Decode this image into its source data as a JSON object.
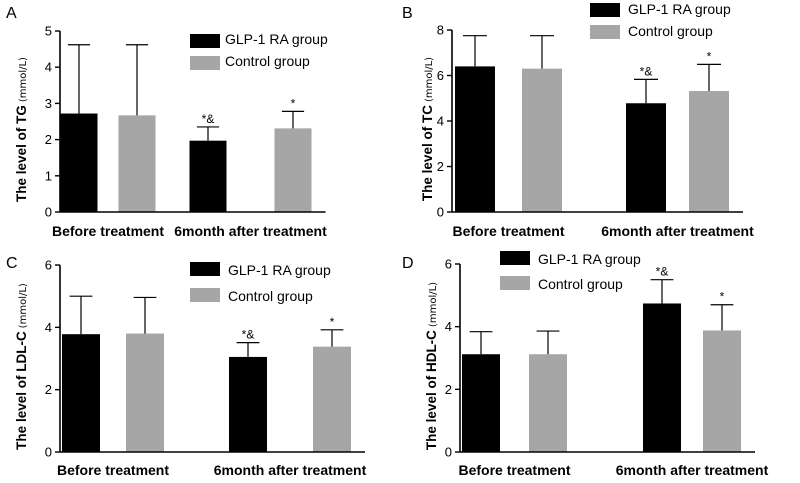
{
  "figure": {
    "colors": {
      "glp1": "#000000",
      "control": "#a6a6a6",
      "axis": "#000000"
    }
  },
  "chart_data": [
    {
      "type": "bar",
      "panel_label": "A",
      "ylabel": "The level of TG",
      "yunit": "(mmol/L)",
      "categories": [
        "Before treatment",
        "6month after treatment"
      ],
      "ylim": [
        0,
        5
      ],
      "yticks": [
        "0",
        "1",
        "2",
        "3",
        "4",
        "5"
      ],
      "legend": [
        "GLP-1 RA group",
        "Control group"
      ],
      "series": [
        {
          "name": "GLP-1 RA group",
          "values": [
            2.72,
            1.97
          ],
          "errors": [
            1.9,
            0.38
          ],
          "annotations": [
            "",
            "*&"
          ]
        },
        {
          "name": "Control group",
          "values": [
            2.67,
            2.31
          ],
          "errors": [
            1.95,
            0.47
          ],
          "annotations": [
            "",
            "*"
          ]
        }
      ]
    },
    {
      "type": "bar",
      "panel_label": "B",
      "ylabel": "The level of TC",
      "yunit": "(mmol/L)",
      "categories": [
        "Before treatment",
        "6month after treatment"
      ],
      "ylim": [
        0,
        8
      ],
      "yticks": [
        "0",
        "2",
        "4",
        "6",
        "8"
      ],
      "legend": [
        "GLP-1 RA group",
        "Control group"
      ],
      "series": [
        {
          "name": "GLP-1 RA group",
          "values": [
            6.4,
            4.78
          ],
          "errors": [
            1.35,
            1.05
          ],
          "annotations": [
            "",
            "*&"
          ]
        },
        {
          "name": "Control group",
          "values": [
            6.3,
            5.32
          ],
          "errors": [
            1.45,
            1.17
          ],
          "annotations": [
            "",
            "*"
          ]
        }
      ]
    },
    {
      "type": "bar",
      "panel_label": "C",
      "ylabel": "The level of LDL-C",
      "yunit": "(mmol/L)",
      "categories": [
        "Before treatment",
        "6month after treatment"
      ],
      "ylim": [
        0,
        6
      ],
      "yticks": [
        "0",
        "2",
        "4",
        "6"
      ],
      "legend": [
        "GLP-1 RA group",
        "Control group"
      ],
      "series": [
        {
          "name": "GLP-1 RA group",
          "values": [
            3.78,
            3.05
          ],
          "errors": [
            1.22,
            0.46
          ],
          "annotations": [
            "",
            "*&"
          ]
        },
        {
          "name": "Control group",
          "values": [
            3.8,
            3.38
          ],
          "errors": [
            1.16,
            0.54
          ],
          "annotations": [
            "",
            "*"
          ]
        }
      ]
    },
    {
      "type": "bar",
      "panel_label": "D",
      "ylabel": "The level of HDL-C",
      "yunit": "(mmol/L)",
      "categories": [
        "Before treatment",
        "6month after treatment"
      ],
      "ylim": [
        0,
        6
      ],
      "yticks": [
        "0",
        "2",
        "4",
        "6"
      ],
      "legend": [
        "GLP-1 RA group",
        "Control group"
      ],
      "series": [
        {
          "name": "GLP-1 RA group",
          "values": [
            3.12,
            4.74
          ],
          "errors": [
            0.72,
            0.76
          ],
          "annotations": [
            "",
            "*&"
          ]
        },
        {
          "name": "Control group",
          "values": [
            3.12,
            3.88
          ],
          "errors": [
            0.74,
            0.82
          ],
          "annotations": [
            "",
            "*"
          ]
        }
      ]
    }
  ]
}
